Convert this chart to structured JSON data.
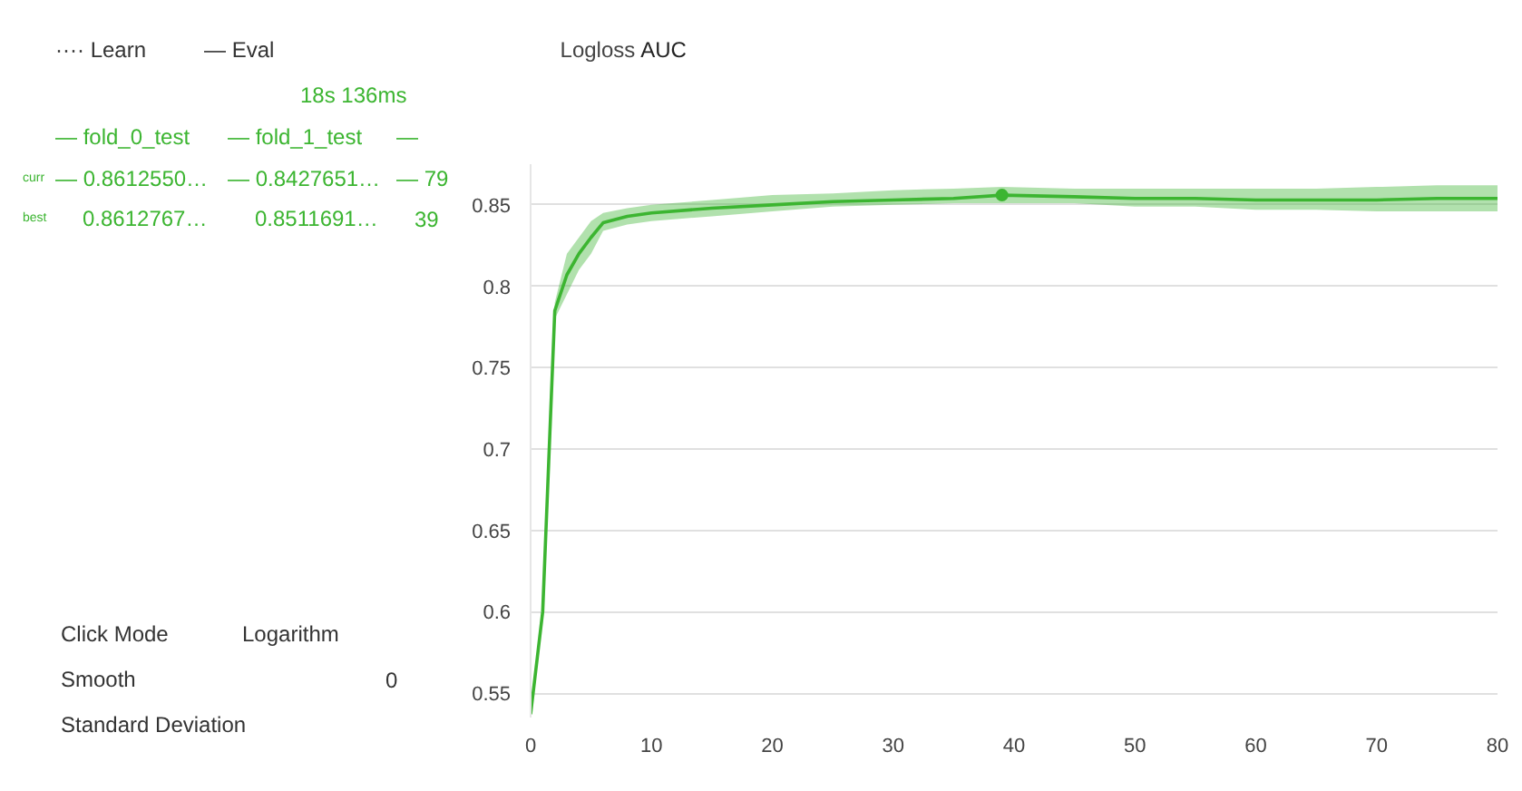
{
  "chart_data": {
    "type": "line",
    "title": "AUC",
    "annotations": [
      "Logloss",
      "···· Learn",
      "— Eval",
      "18s 136ms",
      "— fold_0_test",
      "— fold_1_test",
      "—",
      "curr",
      "— 0.8612550…",
      "— 0.8427651…",
      "— 79",
      "best",
      "0.8612767…",
      "0.8511691…",
      "39",
      "Click Mode",
      "Logarithm",
      "Smooth",
      "0",
      "Standard Deviation"
    ],
    "x": [
      0,
      1,
      2,
      3,
      4,
      5,
      6,
      8,
      10,
      15,
      20,
      25,
      30,
      35,
      39,
      45,
      50,
      55,
      60,
      65,
      70,
      75,
      80
    ],
    "series": [
      {
        "color": "#3cb531",
        "values": [
          0.537,
          0.6,
          0.785,
          0.807,
          0.82,
          0.83,
          0.839,
          0.843,
          0.845,
          0.848,
          0.85,
          0.852,
          0.853,
          0.854,
          0.856,
          0.855,
          0.854,
          0.854,
          0.853,
          0.853,
          0.853,
          0.854,
          0.854
        ],
        "lower": [
          0.535,
          0.595,
          0.78,
          0.795,
          0.81,
          0.82,
          0.834,
          0.838,
          0.84,
          0.843,
          0.846,
          0.849,
          0.85,
          0.851,
          0.851,
          0.851,
          0.849,
          0.849,
          0.847,
          0.847,
          0.846,
          0.846,
          0.846
        ],
        "upper": [
          0.539,
          0.605,
          0.79,
          0.82,
          0.83,
          0.84,
          0.845,
          0.848,
          0.85,
          0.853,
          0.856,
          0.857,
          0.859,
          0.86,
          0.861,
          0.86,
          0.86,
          0.86,
          0.86,
          0.86,
          0.861,
          0.862,
          0.862
        ]
      },
      {
        "type": "scatter",
        "color": "#3cb531",
        "x": [
          39
        ],
        "values": [
          0.856
        ]
      }
    ],
    "xlim": [
      0,
      80
    ],
    "ylim": [
      0.535,
      0.875
    ],
    "xticks": [
      0,
      10,
      20,
      30,
      40,
      50,
      60,
      70,
      80
    ],
    "yticks": [
      0.55,
      0.6,
      0.65,
      0.7,
      0.75,
      0.8,
      0.85
    ],
    "grid": "y"
  }
}
